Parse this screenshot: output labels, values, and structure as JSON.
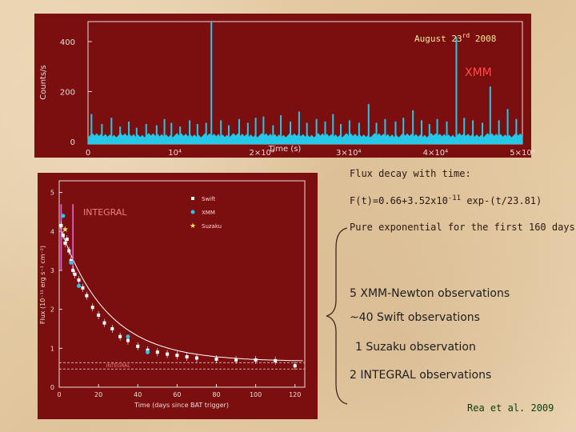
{
  "xmm_panel": {
    "date_label": "August 23",
    "date_sup": "rd",
    "date_year": " 2008",
    "instrument_label": "XMM"
  },
  "notes": {
    "flux_decay": "Flux decay with time:",
    "formula": "F(t)=0.66+3.52x10",
    "formula_exp": "-11",
    "formula_tail": " exp-(t/23.81)",
    "pure_exp": "Pure exponential for the first 160 days"
  },
  "observations": {
    "xmm": "5 XMM-Newton observations",
    "swift": "~40 Swift observations",
    "suzaku": "1 Suzaku observation",
    "integral": "2 INTEGRAL observations"
  },
  "reference": "Rea et al. 2009",
  "colors": {
    "panel_bg": "#7b0e0e",
    "lightcurve": "#27c7e8",
    "axis": "#e9dcdc",
    "integral_marker": "#e05ad0",
    "suzaku_marker": "#f0e46a",
    "date_text": "#f4ea9a",
    "xmm_text": "#ff4d4d"
  },
  "chart_data": [
    {
      "type": "line",
      "title": "",
      "xlabel": "Time (s)",
      "ylabel": "Counts/s",
      "xlim": [
        0,
        50000
      ],
      "ylim": [
        -10,
        480
      ],
      "x_ticks": [
        "0",
        "10⁴",
        "2×10⁴",
        "3×10⁴",
        "4×10⁴",
        "5×10⁴"
      ],
      "y_ticks": [
        "0",
        "200",
        "400"
      ],
      "baseline_counts": 15,
      "bursts": [
        {
          "t": 400,
          "v": 110
        },
        {
          "t": 1600,
          "v": 70
        },
        {
          "t": 2700,
          "v": 95
        },
        {
          "t": 3700,
          "v": 60
        },
        {
          "t": 4700,
          "v": 80
        },
        {
          "t": 5600,
          "v": 55
        },
        {
          "t": 6700,
          "v": 70
        },
        {
          "t": 7900,
          "v": 65
        },
        {
          "t": 8800,
          "v": 90
        },
        {
          "t": 9600,
          "v": 75
        },
        {
          "t": 10600,
          "v": 60
        },
        {
          "t": 11700,
          "v": 85
        },
        {
          "t": 12600,
          "v": 70
        },
        {
          "t": 13600,
          "v": 75
        },
        {
          "t": 14200,
          "v": 480
        },
        {
          "t": 15300,
          "v": 85
        },
        {
          "t": 16200,
          "v": 65
        },
        {
          "t": 17400,
          "v": 90
        },
        {
          "t": 18400,
          "v": 75
        },
        {
          "t": 19300,
          "v": 95
        },
        {
          "t": 20200,
          "v": 100
        },
        {
          "t": 21300,
          "v": 65
        },
        {
          "t": 22200,
          "v": 105
        },
        {
          "t": 23300,
          "v": 80
        },
        {
          "t": 24300,
          "v": 120
        },
        {
          "t": 25200,
          "v": 75
        },
        {
          "t": 26300,
          "v": 90
        },
        {
          "t": 27300,
          "v": 80
        },
        {
          "t": 28200,
          "v": 110
        },
        {
          "t": 29100,
          "v": 70
        },
        {
          "t": 30100,
          "v": 85
        },
        {
          "t": 31200,
          "v": 75
        },
        {
          "t": 32300,
          "v": 150
        },
        {
          "t": 33200,
          "v": 75
        },
        {
          "t": 34200,
          "v": 90
        },
        {
          "t": 35400,
          "v": 80
        },
        {
          "t": 36300,
          "v": 95
        },
        {
          "t": 37400,
          "v": 125
        },
        {
          "t": 38400,
          "v": 85
        },
        {
          "t": 39300,
          "v": 70
        },
        {
          "t": 40200,
          "v": 90
        },
        {
          "t": 41300,
          "v": 80
        },
        {
          "t": 42400,
          "v": 420
        },
        {
          "t": 43300,
          "v": 95
        },
        {
          "t": 44300,
          "v": 85
        },
        {
          "t": 45400,
          "v": 75
        },
        {
          "t": 46300,
          "v": 220
        },
        {
          "t": 47300,
          "v": 85
        },
        {
          "t": 48300,
          "v": 130
        },
        {
          "t": 49300,
          "v": 90
        }
      ]
    },
    {
      "type": "scatter",
      "title": "",
      "xlabel": "Time (days since BAT trigger)",
      "ylabel": "Flux (10⁻¹¹ erg s⁻¹ cm⁻²)",
      "xlim": [
        0,
        125
      ],
      "ylim": [
        0,
        5.3
      ],
      "x_ticks": [
        "0",
        "20",
        "40",
        "60",
        "80",
        "100",
        "120"
      ],
      "y_ticks": [
        "0",
        "1",
        "2",
        "3",
        "4",
        "5"
      ],
      "panel_label": "INTEGRAL",
      "legend": [
        "Swift",
        "XMM",
        "Suzaku"
      ],
      "legend_position": "top-right",
      "swift": [
        [
          1,
          4.15
        ],
        [
          2,
          3.9
        ],
        [
          3,
          3.7
        ],
        [
          4,
          3.8
        ],
        [
          5,
          3.5
        ],
        [
          6,
          3.25
        ],
        [
          7,
          3.0
        ],
        [
          8,
          2.9
        ],
        [
          10,
          2.75
        ],
        [
          12,
          2.55
        ],
        [
          14,
          2.35
        ],
        [
          17,
          2.05
        ],
        [
          20,
          1.85
        ],
        [
          23,
          1.65
        ],
        [
          27,
          1.5
        ],
        [
          31,
          1.3
        ],
        [
          35,
          1.2
        ],
        [
          40,
          1.05
        ],
        [
          45,
          0.95
        ],
        [
          50,
          0.9
        ],
        [
          55,
          0.85
        ],
        [
          60,
          0.82
        ],
        [
          65,
          0.78
        ],
        [
          70,
          0.75
        ],
        [
          80,
          0.72
        ],
        [
          90,
          0.7
        ],
        [
          100,
          0.7
        ],
        [
          110,
          0.68
        ],
        [
          120,
          0.55
        ]
      ],
      "xmm": [
        [
          2,
          4.4
        ],
        [
          6,
          3.2
        ],
        [
          10,
          2.6
        ],
        [
          35,
          1.3
        ],
        [
          45,
          0.9
        ]
      ],
      "suzaku": [
        [
          3,
          4.05
        ]
      ],
      "integral_markers_days": [
        1,
        7
      ],
      "fit": {
        "a": 0.66,
        "b": 3.52,
        "tau": 23.81
      },
      "sensitivity_label": "INTEGRAL",
      "sensitivity_level": 0.55
    }
  ]
}
